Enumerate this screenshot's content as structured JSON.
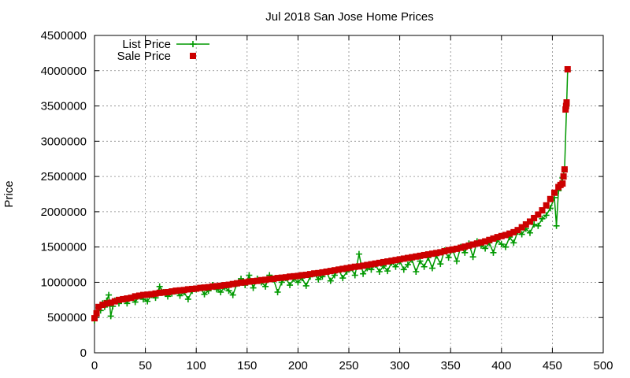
{
  "chart_data": {
    "type": "scatter",
    "title": "Jul 2018 San Jose Home Prices",
    "xlabel": "",
    "ylabel": "Price",
    "xlim": [
      0,
      500
    ],
    "ylim": [
      0,
      4500000
    ],
    "xticks": [
      "0",
      "50",
      "100",
      "150",
      "200",
      "250",
      "300",
      "350",
      "400",
      "450",
      "500"
    ],
    "yticks": [
      "0",
      "500000",
      "1000000",
      "1500000",
      "2000000",
      "2500000",
      "3000000",
      "3500000",
      "4000000",
      "4500000"
    ],
    "grid": true,
    "legend_position": "top-left",
    "series": [
      {
        "name": "List Price",
        "style": "line-with-plus-markers",
        "color": "#009900",
        "points": [
          [
            0,
            460000
          ],
          [
            2,
            520000
          ],
          [
            4,
            640000
          ],
          [
            6,
            600000
          ],
          [
            8,
            700000
          ],
          [
            10,
            650000
          ],
          [
            12,
            740000
          ],
          [
            14,
            820000
          ],
          [
            16,
            520000
          ],
          [
            18,
            660000
          ],
          [
            20,
            740000
          ],
          [
            24,
            700000
          ],
          [
            28,
            760000
          ],
          [
            32,
            700000
          ],
          [
            36,
            780000
          ],
          [
            40,
            720000
          ],
          [
            44,
            800000
          ],
          [
            48,
            760000
          ],
          [
            52,
            730000
          ],
          [
            56,
            820000
          ],
          [
            60,
            780000
          ],
          [
            64,
            940000
          ],
          [
            68,
            860000
          ],
          [
            72,
            800000
          ],
          [
            76,
            840000
          ],
          [
            80,
            870000
          ],
          [
            84,
            810000
          ],
          [
            88,
            860000
          ],
          [
            92,
            760000
          ],
          [
            96,
            880000
          ],
          [
            100,
            900000
          ],
          [
            104,
            920000
          ],
          [
            108,
            830000
          ],
          [
            112,
            880000
          ],
          [
            116,
            960000
          ],
          [
            120,
            900000
          ],
          [
            124,
            860000
          ],
          [
            128,
            930000
          ],
          [
            132,
            880000
          ],
          [
            136,
            820000
          ],
          [
            140,
            980000
          ],
          [
            144,
            1050000
          ],
          [
            148,
            960000
          ],
          [
            152,
            1100000
          ],
          [
            156,
            920000
          ],
          [
            160,
            1050000
          ],
          [
            164,
            1000000
          ],
          [
            168,
            940000
          ],
          [
            172,
            1100000
          ],
          [
            176,
            1040000
          ],
          [
            180,
            860000
          ],
          [
            184,
            1000000
          ],
          [
            188,
            1060000
          ],
          [
            192,
            960000
          ],
          [
            196,
            1050000
          ],
          [
            200,
            1000000
          ],
          [
            204,
            1060000
          ],
          [
            208,
            950000
          ],
          [
            212,
            1080000
          ],
          [
            216,
            1120000
          ],
          [
            220,
            1040000
          ],
          [
            224,
            1080000
          ],
          [
            228,
            1150000
          ],
          [
            232,
            1020000
          ],
          [
            236,
            1100000
          ],
          [
            240,
            1180000
          ],
          [
            244,
            1060000
          ],
          [
            248,
            1150000
          ],
          [
            252,
            1200000
          ],
          [
            256,
            1100000
          ],
          [
            260,
            1400000
          ],
          [
            264,
            1120000
          ],
          [
            268,
            1200000
          ],
          [
            272,
            1180000
          ],
          [
            276,
            1250000
          ],
          [
            280,
            1150000
          ],
          [
            284,
            1230000
          ],
          [
            288,
            1160000
          ],
          [
            292,
            1280000
          ],
          [
            296,
            1220000
          ],
          [
            300,
            1300000
          ],
          [
            304,
            1180000
          ],
          [
            308,
            1250000
          ],
          [
            312,
            1320000
          ],
          [
            316,
            1150000
          ],
          [
            320,
            1300000
          ],
          [
            324,
            1220000
          ],
          [
            328,
            1350000
          ],
          [
            332,
            1200000
          ],
          [
            336,
            1380000
          ],
          [
            340,
            1260000
          ],
          [
            344,
            1450000
          ],
          [
            348,
            1350000
          ],
          [
            352,
            1460000
          ],
          [
            356,
            1300000
          ],
          [
            360,
            1500000
          ],
          [
            364,
            1420000
          ],
          [
            368,
            1550000
          ],
          [
            372,
            1360000
          ],
          [
            376,
            1580000
          ],
          [
            380,
            1520000
          ],
          [
            384,
            1480000
          ],
          [
            388,
            1560000
          ],
          [
            392,
            1420000
          ],
          [
            396,
            1600000
          ],
          [
            400,
            1540000
          ],
          [
            404,
            1500000
          ],
          [
            408,
            1640000
          ],
          [
            412,
            1560000
          ],
          [
            416,
            1720000
          ],
          [
            420,
            1680000
          ],
          [
            424,
            1760000
          ],
          [
            428,
            1700000
          ],
          [
            432,
            1820000
          ],
          [
            436,
            1800000
          ],
          [
            440,
            1900000
          ],
          [
            444,
            1950000
          ],
          [
            448,
            2050000
          ],
          [
            452,
            2200000
          ],
          [
            454,
            1800000
          ],
          [
            456,
            2300000
          ],
          [
            458,
            2400000
          ],
          [
            460,
            2480000
          ],
          [
            462,
            2600000
          ],
          [
            464,
            3500000
          ],
          [
            465,
            4000000
          ]
        ]
      },
      {
        "name": "Sale Price",
        "style": "square-markers",
        "color": "#cc0000",
        "points": [
          [
            0,
            490000
          ],
          [
            2,
            560000
          ],
          [
            4,
            650000
          ],
          [
            8,
            680000
          ],
          [
            12,
            700000
          ],
          [
            16,
            710000
          ],
          [
            20,
            730000
          ],
          [
            24,
            750000
          ],
          [
            28,
            760000
          ],
          [
            32,
            770000
          ],
          [
            36,
            780000
          ],
          [
            40,
            800000
          ],
          [
            44,
            810000
          ],
          [
            48,
            820000
          ],
          [
            52,
            825000
          ],
          [
            56,
            830000
          ],
          [
            60,
            840000
          ],
          [
            64,
            850000
          ],
          [
            68,
            855000
          ],
          [
            72,
            860000
          ],
          [
            76,
            870000
          ],
          [
            80,
            880000
          ],
          [
            84,
            885000
          ],
          [
            88,
            890000
          ],
          [
            92,
            900000
          ],
          [
            96,
            905000
          ],
          [
            100,
            910000
          ],
          [
            104,
            920000
          ],
          [
            108,
            925000
          ],
          [
            112,
            930000
          ],
          [
            116,
            940000
          ],
          [
            120,
            945000
          ],
          [
            124,
            950000
          ],
          [
            128,
            960000
          ],
          [
            132,
            965000
          ],
          [
            136,
            975000
          ],
          [
            140,
            985000
          ],
          [
            144,
            995000
          ],
          [
            148,
            1000000
          ],
          [
            152,
            1010000
          ],
          [
            156,
            1015000
          ],
          [
            160,
            1020000
          ],
          [
            164,
            1030000
          ],
          [
            168,
            1035000
          ],
          [
            172,
            1045000
          ],
          [
            176,
            1050000
          ],
          [
            180,
            1060000
          ],
          [
            184,
            1065000
          ],
          [
            188,
            1070000
          ],
          [
            192,
            1080000
          ],
          [
            196,
            1085000
          ],
          [
            200,
            1090000
          ],
          [
            204,
            1100000
          ],
          [
            208,
            1105000
          ],
          [
            212,
            1115000
          ],
          [
            216,
            1125000
          ],
          [
            220,
            1130000
          ],
          [
            224,
            1140000
          ],
          [
            228,
            1150000
          ],
          [
            232,
            1160000
          ],
          [
            236,
            1170000
          ],
          [
            240,
            1180000
          ],
          [
            244,
            1190000
          ],
          [
            248,
            1200000
          ],
          [
            252,
            1210000
          ],
          [
            256,
            1220000
          ],
          [
            260,
            1225000
          ],
          [
            264,
            1235000
          ],
          [
            268,
            1245000
          ],
          [
            272,
            1255000
          ],
          [
            276,
            1265000
          ],
          [
            280,
            1275000
          ],
          [
            284,
            1285000
          ],
          [
            288,
            1295000
          ],
          [
            292,
            1305000
          ],
          [
            296,
            1315000
          ],
          [
            300,
            1325000
          ],
          [
            304,
            1335000
          ],
          [
            308,
            1345000
          ],
          [
            312,
            1355000
          ],
          [
            316,
            1365000
          ],
          [
            320,
            1375000
          ],
          [
            324,
            1385000
          ],
          [
            328,
            1395000
          ],
          [
            332,
            1405000
          ],
          [
            336,
            1415000
          ],
          [
            340,
            1425000
          ],
          [
            344,
            1440000
          ],
          [
            348,
            1455000
          ],
          [
            352,
            1465000
          ],
          [
            356,
            1475000
          ],
          [
            360,
            1490000
          ],
          [
            364,
            1505000
          ],
          [
            368,
            1520000
          ],
          [
            372,
            1535000
          ],
          [
            376,
            1550000
          ],
          [
            380,
            1565000
          ],
          [
            384,
            1580000
          ],
          [
            388,
            1600000
          ],
          [
            392,
            1620000
          ],
          [
            396,
            1640000
          ],
          [
            400,
            1655000
          ],
          [
            404,
            1670000
          ],
          [
            408,
            1690000
          ],
          [
            412,
            1710000
          ],
          [
            416,
            1740000
          ],
          [
            420,
            1780000
          ],
          [
            424,
            1820000
          ],
          [
            428,
            1860000
          ],
          [
            432,
            1910000
          ],
          [
            436,
            1960000
          ],
          [
            440,
            2020000
          ],
          [
            444,
            2090000
          ],
          [
            448,
            2180000
          ],
          [
            452,
            2270000
          ],
          [
            456,
            2350000
          ],
          [
            458,
            2380000
          ],
          [
            460,
            2400000
          ],
          [
            461,
            2500000
          ],
          [
            462,
            2600000
          ],
          [
            463,
            3450000
          ],
          [
            463.5,
            3500000
          ],
          [
            464,
            3550000
          ],
          [
            465,
            4020000
          ]
        ]
      }
    ]
  }
}
